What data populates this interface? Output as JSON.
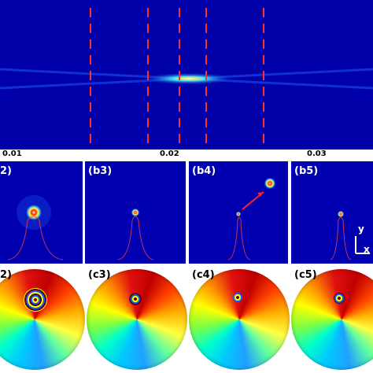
{
  "top_axis": {
    "ticks": [
      "0.01",
      "0.02",
      "0.03"
    ]
  },
  "row_b": {
    "labels": [
      "2)",
      "(b3)",
      "(b4)",
      "(b5)"
    ]
  },
  "row_c": {
    "labels": [
      "2)",
      "(c3)",
      "(c4)",
      "(c5)"
    ]
  },
  "coordinate_axes": {
    "y": "y",
    "x": "x"
  }
}
